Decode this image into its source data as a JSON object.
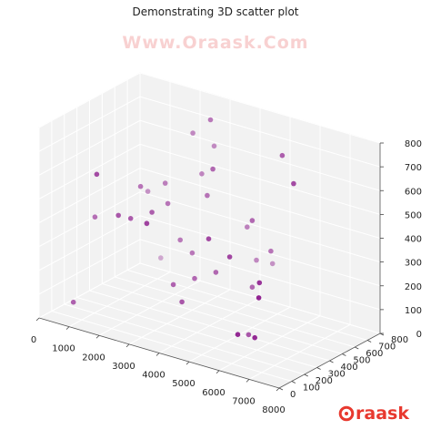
{
  "chart_data": {
    "type": "scatter",
    "title": "Demonstrating 3D scatter plot",
    "xlim": [
      0,
      8000
    ],
    "ylim": [
      0,
      800
    ],
    "zlim": [
      0,
      800
    ],
    "x_ticks": [
      0,
      1000,
      2000,
      3000,
      4000,
      5000,
      6000,
      7000,
      8000
    ],
    "y_ticks": [
      0,
      100,
      200,
      300,
      400,
      500,
      600,
      700,
      800
    ],
    "z_ticks": [
      0,
      100,
      200,
      300,
      400,
      500,
      600,
      700,
      800
    ],
    "grid": true,
    "marker_color": "#800080",
    "points": [
      {
        "x": 300,
        "y": 200,
        "z": 20
      },
      {
        "x": 900,
        "y": 750,
        "z": 70
      },
      {
        "x": 5300,
        "y": 400,
        "z": 10
      },
      {
        "x": 6200,
        "y": 100,
        "z": 130
      },
      {
        "x": 6600,
        "y": 140,
        "z": 120
      },
      {
        "x": 4300,
        "y": 700,
        "z": 200
      },
      {
        "x": 4500,
        "y": 780,
        "z": 170
      },
      {
        "x": 5000,
        "y": 500,
        "z": 170
      },
      {
        "x": 600,
        "y": 300,
        "z": 360
      },
      {
        "x": 1700,
        "y": 450,
        "z": 330
      },
      {
        "x": 1100,
        "y": 600,
        "z": 400
      },
      {
        "x": 1400,
        "y": 520,
        "z": 300
      },
      {
        "x": 2600,
        "y": 500,
        "z": 280
      },
      {
        "x": 3000,
        "y": 500,
        "z": 240
      },
      {
        "x": 3500,
        "y": 400,
        "z": 180
      },
      {
        "x": 3000,
        "y": 350,
        "z": 150
      },
      {
        "x": 3500,
        "y": 300,
        "z": 110
      },
      {
        "x": 4000,
        "y": 450,
        "z": 210
      },
      {
        "x": 4200,
        "y": 650,
        "z": 350
      },
      {
        "x": 5200,
        "y": 600,
        "z": 300
      },
      {
        "x": 6500,
        "y": 200,
        "z": 330
      },
      {
        "x": 6900,
        "y": 100,
        "z": 310
      },
      {
        "x": 2100,
        "y": 500,
        "z": 500
      },
      {
        "x": 2400,
        "y": 450,
        "z": 440
      },
      {
        "x": 2900,
        "y": 600,
        "z": 540
      },
      {
        "x": 3500,
        "y": 500,
        "z": 500
      },
      {
        "x": 4600,
        "y": 250,
        "z": 430
      },
      {
        "x": 5000,
        "y": 500,
        "z": 450
      },
      {
        "x": 5300,
        "y": 250,
        "z": 380
      },
      {
        "x": 1500,
        "y": 100,
        "z": 630
      },
      {
        "x": 1700,
        "y": 400,
        "z": 500
      },
      {
        "x": 1800,
        "y": 200,
        "z": 440
      },
      {
        "x": 2000,
        "y": 250,
        "z": 420
      },
      {
        "x": 2600,
        "y": 600,
        "z": 700
      },
      {
        "x": 3400,
        "y": 550,
        "z": 800
      },
      {
        "x": 3100,
        "y": 650,
        "z": 650
      },
      {
        "x": 3900,
        "y": 450,
        "z": 640
      },
      {
        "x": 6000,
        "y": 500,
        "z": 760
      },
      {
        "x": 6800,
        "y": 400,
        "z": 700
      },
      {
        "x": 2500,
        "y": 300,
        "z": 450
      }
    ]
  },
  "watermark": "Www.Oraask.Com",
  "brand": {
    "text": "raask",
    "color": "#e8392f"
  }
}
